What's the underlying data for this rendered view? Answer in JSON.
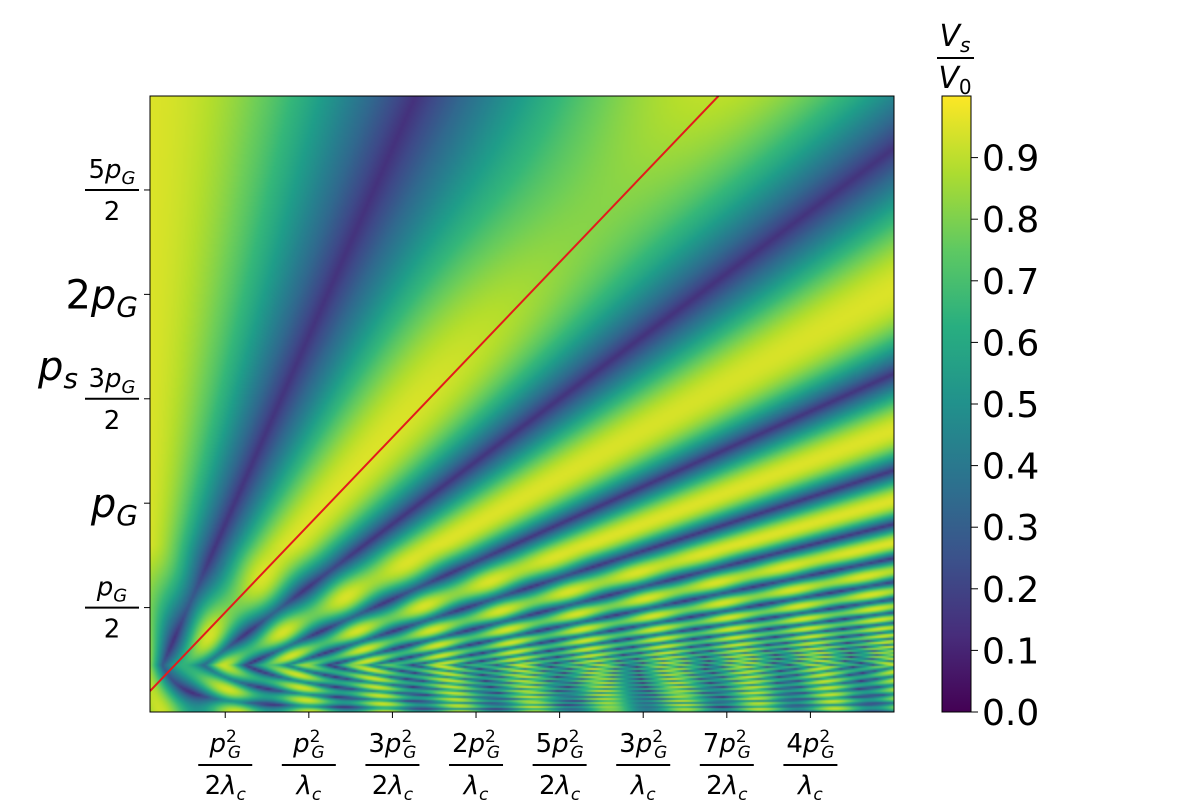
{
  "chart_data": {
    "type": "heatmap",
    "title": "",
    "xlabel": "",
    "ylabel": "p_s",
    "x_unit": "p_G^2/λ_c",
    "y_unit": "p_G",
    "xlim": [
      0.05,
      4.5
    ],
    "ylim": [
      0.0,
      2.95
    ],
    "x_ticks": [
      {
        "value": 0.5,
        "num_coef": "",
        "den": "2λ",
        "label": "p_G^2/(2λ_c)"
      },
      {
        "value": 1.0,
        "num_coef": "",
        "den": "λ",
        "label": "p_G^2/λ_c"
      },
      {
        "value": 1.5,
        "num_coef": "3",
        "den": "2λ",
        "label": "3p_G^2/(2λ_c)"
      },
      {
        "value": 2.0,
        "num_coef": "2",
        "den": "λ",
        "label": "2p_G^2/λ_c"
      },
      {
        "value": 2.5,
        "num_coef": "5",
        "den": "2λ",
        "label": "5p_G^2/(2λ_c)"
      },
      {
        "value": 3.0,
        "num_coef": "3",
        "den": "λ",
        "label": "3p_G^2/λ_c"
      },
      {
        "value": 3.5,
        "num_coef": "7",
        "den": "2λ",
        "label": "7p_G^2/(2λ_c)"
      },
      {
        "value": 4.0,
        "num_coef": "4",
        "den": "λ",
        "label": "4p_G^2/λ_c"
      }
    ],
    "y_ticks": [
      {
        "value": 0.5,
        "kind": "frac",
        "num_coef": "",
        "den": "2",
        "label": "p_G/2"
      },
      {
        "value": 1.0,
        "kind": "inline",
        "coef": "",
        "label": "p_G"
      },
      {
        "value": 1.5,
        "kind": "frac",
        "num_coef": "3",
        "den": "2",
        "label": "3p_G/2"
      },
      {
        "value": 2.0,
        "kind": "inline",
        "coef": "2",
        "label": "2p_G"
      },
      {
        "value": 2.5,
        "kind": "frac",
        "num_coef": "5",
        "den": "2",
        "label": "5p_G/2"
      }
    ],
    "colorbar": {
      "label": "V_s/V_0",
      "label_num": "V",
      "label_num_sub": "s",
      "label_den": "V",
      "label_den_sub": "0",
      "range": [
        0.0,
        1.0
      ],
      "ticks": [
        "0.0",
        "0.1",
        "0.2",
        "0.3",
        "0.4",
        "0.5",
        "0.6",
        "0.7",
        "0.8",
        "0.9"
      ],
      "colormap": "viridis"
    },
    "overlay_line": {
      "color": "#e31a1c",
      "description": "diagonal line p_s = p_G^2 x / λ_c",
      "points": [
        [
          0.05,
          0.1
        ],
        [
          3.45,
          2.95
        ]
      ]
    },
    "grid": false
  }
}
